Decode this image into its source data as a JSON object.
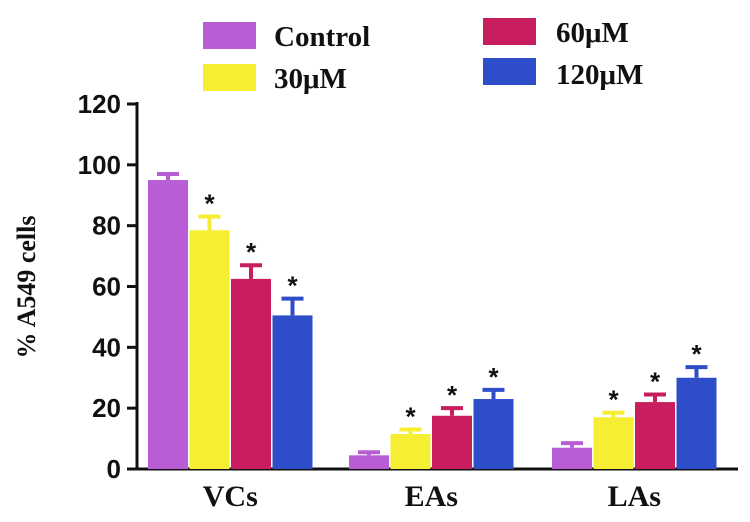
{
  "chart_data": {
    "type": "bar",
    "title": "",
    "xlabel": "",
    "ylabel": "% A549 cells",
    "ylim": [
      0,
      120
    ],
    "yticks": [
      0,
      20,
      40,
      60,
      80,
      100,
      120
    ],
    "categories": [
      "VCs",
      "EAs",
      "LAs"
    ],
    "series": [
      {
        "name": "Control",
        "color": "#B85DD6",
        "values": [
          95,
          4.5,
          7
        ],
        "errors": [
          2,
          1,
          1.5
        ],
        "significant": [
          false,
          false,
          false
        ]
      },
      {
        "name": "30μM",
        "color": "#F5EE33",
        "values": [
          78.5,
          11.5,
          17
        ],
        "errors": [
          4.5,
          1.5,
          1.5
        ],
        "significant": [
          true,
          true,
          true
        ]
      },
      {
        "name": "60μM",
        "color": "#C81D5E",
        "values": [
          62.5,
          17.5,
          22
        ],
        "errors": [
          4.5,
          2.5,
          2.5
        ],
        "significant": [
          true,
          true,
          true
        ]
      },
      {
        "name": "120μM",
        "color": "#2E4EC9",
        "values": [
          50.5,
          23,
          30
        ],
        "errors": [
          5.5,
          3,
          3.5
        ],
        "significant": [
          true,
          true,
          true
        ]
      }
    ],
    "significance_marker": "*",
    "legend": {
      "placement": "top"
    }
  }
}
